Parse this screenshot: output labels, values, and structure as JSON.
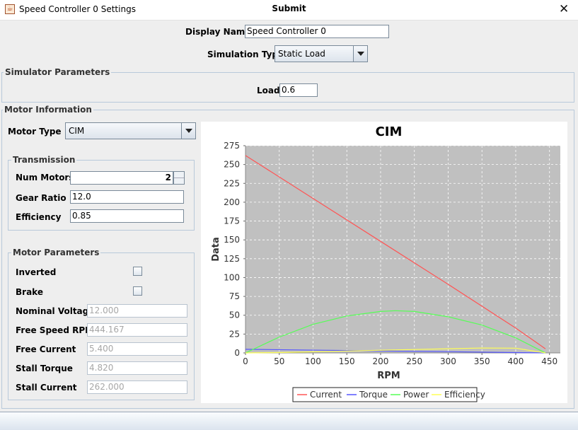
{
  "window": {
    "title": "Speed Controller 0 Settings",
    "close_glyph": "✕",
    "icon": "java-cup-icon"
  },
  "display_name": {
    "label": "Display Name",
    "value": "Speed Controller 0"
  },
  "simulation_type": {
    "label": "Simulation Type",
    "value": "Static Load"
  },
  "simulator_parameters": {
    "title": "Simulator Parameters",
    "load_label": "Load",
    "load_value": "0.6"
  },
  "motor_information": {
    "title": "Motor Information",
    "motor_type_label": "Motor Type",
    "motor_type_value": "CIM",
    "transmission": {
      "title": "Transmission",
      "num_motors_label": "Num Motors",
      "num_motors_value": "2",
      "gear_ratio_label": "Gear Ratio",
      "gear_ratio_value": "12.0",
      "efficiency_label": "Efficiency",
      "efficiency_value": "0.85"
    },
    "motor_parameters": {
      "title": "Motor Parameters",
      "inverted_label": "Inverted",
      "inverted_checked": false,
      "brake_label": "Brake",
      "brake_checked": false,
      "nominal_voltage_label": "Nominal Voltage",
      "nominal_voltage_value": "12.000",
      "free_speed_label": "Free Speed RPM",
      "free_speed_value": "444.167",
      "free_current_label": "Free Current",
      "free_current_value": "5.400",
      "stall_torque_label": "Stall Torque",
      "stall_torque_value": "4.820",
      "stall_current_label": "Stall Current",
      "stall_current_value": "262.000"
    }
  },
  "submit_label": "Submit",
  "chart_data": {
    "type": "line",
    "title": "CIM",
    "xlabel": "RPM",
    "ylabel": "Data",
    "xlim": [
      0,
      466
    ],
    "ylim": [
      0,
      275
    ],
    "xticks": [
      0,
      50,
      100,
      150,
      200,
      250,
      300,
      350,
      400,
      450
    ],
    "yticks": [
      0,
      25,
      50,
      75,
      100,
      125,
      150,
      175,
      200,
      225,
      250,
      275
    ],
    "grid": true,
    "legend_position": "bottom",
    "plot_background": "#c0c0c0",
    "series": [
      {
        "name": "Current",
        "color": "#ff5555",
        "x": [
          0,
          100,
          200,
          300,
          400,
          444
        ],
        "y": [
          262,
          205,
          148,
          91,
          33,
          5.4
        ]
      },
      {
        "name": "Torque",
        "color": "#5555ff",
        "x": [
          0,
          100,
          200,
          300,
          400,
          444
        ],
        "y": [
          4.8,
          3.7,
          2.6,
          1.6,
          0.5,
          0
        ]
      },
      {
        "name": "Power",
        "color": "#55ff55",
        "x": [
          0,
          50,
          100,
          150,
          200,
          222,
          250,
          300,
          350,
          400,
          444
        ],
        "y": [
          0,
          21,
          38,
          49,
          55,
          56,
          55,
          48,
          37,
          20,
          0
        ]
      },
      {
        "name": "Efficiency",
        "color": "#ffff55",
        "x": [
          0,
          50,
          100,
          150,
          200,
          250,
          300,
          350,
          400,
          444
        ],
        "y": [
          0,
          0.5,
          1.5,
          2.5,
          3.5,
          4.5,
          5.5,
          6.5,
          6.3,
          0
        ]
      }
    ]
  }
}
